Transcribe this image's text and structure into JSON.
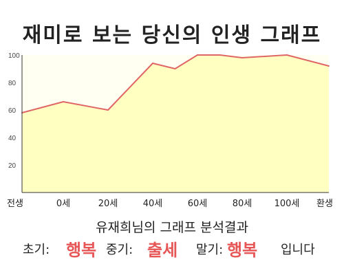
{
  "title": "재미로 보는 당신의 인생 그래프",
  "chart_data": {
    "type": "area",
    "title": "재미로 보는 당신의 인생 그래프",
    "x_tick_labels": [
      "전생",
      "0세",
      "20세",
      "40세",
      "60세",
      "80세",
      "100세",
      "환생"
    ],
    "y_ticks": [
      "100",
      "80",
      "60",
      "40",
      "20"
    ],
    "ylim": [
      0,
      100
    ],
    "grid": false,
    "colors": {
      "line": "#e06666",
      "fill": "#ffffc2",
      "plot_bg": "#fffff2"
    },
    "x_axis": {
      "first_category": "전생",
      "last_category": "환생",
      "age_min": 0,
      "age_max": 100,
      "age_step": 20
    },
    "points": [
      {
        "x": "전생",
        "y": 58
      },
      {
        "x": 0,
        "y": 66
      },
      {
        "x": 20,
        "y": 60
      },
      {
        "x": 40,
        "y": 94
      },
      {
        "x": 50,
        "y": 90
      },
      {
        "x": 60,
        "y": 100
      },
      {
        "x": 70,
        "y": 100
      },
      {
        "x": 80,
        "y": 98
      },
      {
        "x": 100,
        "y": 100
      },
      {
        "x": "환생",
        "y": 92
      }
    ]
  },
  "result": {
    "heading": "유재희님의 그래프 분석결과",
    "early_label": "초기:",
    "early_value": "행복",
    "middle_label": "중기:",
    "middle_value": "출세",
    "late_label": "말기:",
    "late_value": "행복",
    "ending": "입니다"
  }
}
